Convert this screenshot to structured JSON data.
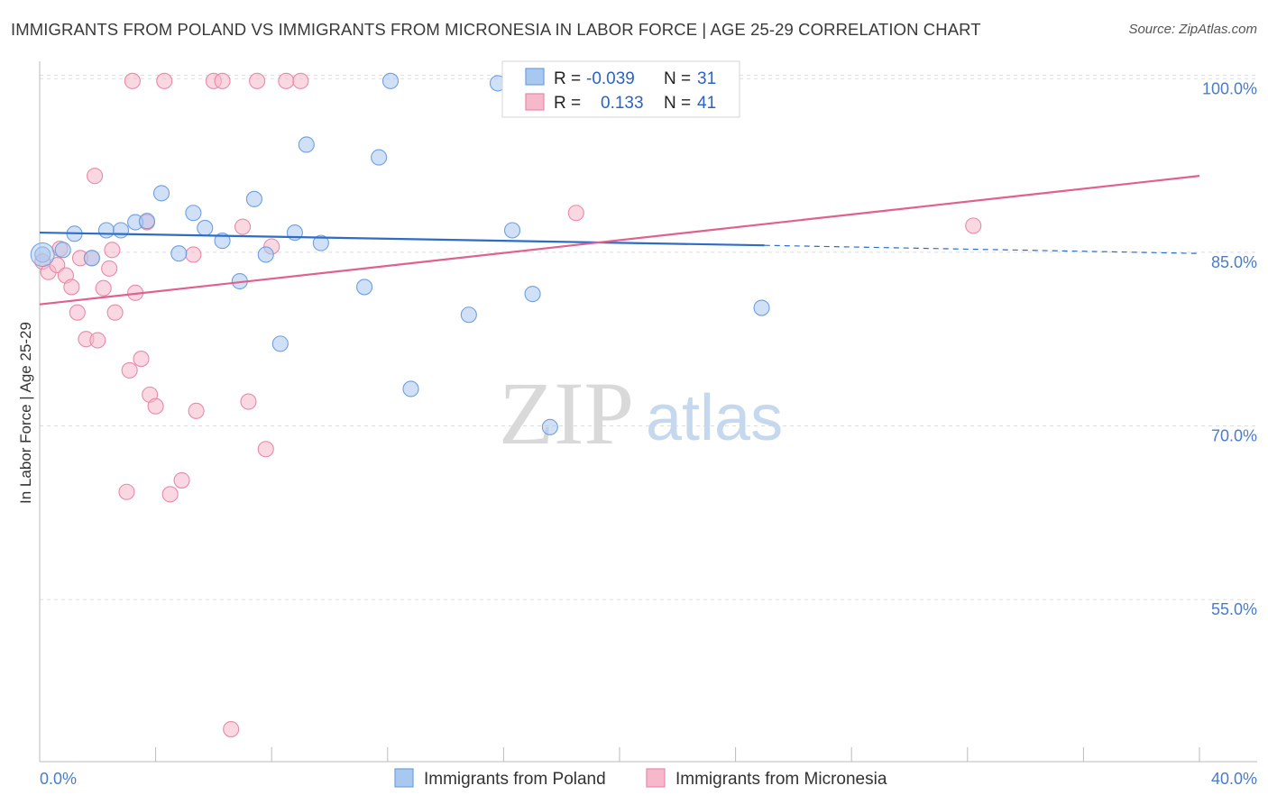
{
  "header": {
    "title": "IMMIGRANTS FROM POLAND VS IMMIGRANTS FROM MICRONESIA IN LABOR FORCE | AGE 25-29 CORRELATION CHART",
    "source": "Source: ZipAtlas.com"
  },
  "watermark": {
    "zip": "ZIP",
    "atlas": "atlas"
  },
  "legend": {
    "rows": [
      {
        "r_label": "R =",
        "r_value": "-0.039",
        "n_label": "N =",
        "n_value": "31",
        "color": "#a7c7ef"
      },
      {
        "r_label": "R =",
        "r_value": "0.133",
        "n_label": "N =",
        "n_value": "41",
        "color": "#f4b6c8"
      }
    ]
  },
  "bottom_legend": {
    "poland": "Immigrants from Poland",
    "micronesia": "Immigrants from Micronesia"
  },
  "colors": {
    "poland_fill": "#a9c8f0",
    "poland_stroke": "#6f9fdd",
    "poland_line": "#2d6cc9",
    "micronesia_fill": "#f6b8cb",
    "micronesia_stroke": "#e88aa8",
    "micronesia_line": "#e0608e",
    "tick_label": "#4a7cc9",
    "grid": "#dddddd"
  },
  "chart_data": {
    "type": "scatter",
    "title": "IMMIGRANTS FROM POLAND VS IMMIGRANTS FROM MICRONESIA IN LABOR FORCE | AGE 25-29 CORRELATION CHART",
    "xlabel": "",
    "ylabel": "In Labor Force | Age 25-29",
    "xlim": [
      0,
      40
    ],
    "ylim": [
      41,
      101.5
    ],
    "x_tick_labels": [
      "0.0%",
      "40.0%"
    ],
    "y_ticks": [
      55,
      70,
      85,
      100
    ],
    "y_tick_labels": [
      "55.0%",
      "70.0%",
      "85.0%",
      "100.0%"
    ],
    "grid": true,
    "legend_position": "top-center",
    "series": [
      {
        "name": "Immigrants from Poland",
        "r": -0.039,
        "n": 31,
        "points": [
          [
            0.1,
            84.8
          ],
          [
            0.8,
            85.2
          ],
          [
            1.2,
            86.6
          ],
          [
            1.8,
            84.5
          ],
          [
            2.3,
            86.9
          ],
          [
            2.8,
            86.9
          ],
          [
            3.3,
            87.6
          ],
          [
            3.7,
            87.7
          ],
          [
            4.2,
            90.1
          ],
          [
            4.8,
            84.9
          ],
          [
            5.3,
            88.4
          ],
          [
            5.7,
            87.1
          ],
          [
            6.3,
            86.0
          ],
          [
            6.9,
            82.5
          ],
          [
            7.4,
            89.6
          ],
          [
            7.8,
            84.8
          ],
          [
            8.3,
            77.1
          ],
          [
            8.8,
            86.7
          ],
          [
            9.2,
            94.3
          ],
          [
            9.7,
            85.8
          ],
          [
            11.2,
            82.0
          ],
          [
            11.7,
            93.2
          ],
          [
            12.1,
            99.8
          ],
          [
            12.8,
            73.2
          ],
          [
            14.8,
            79.6
          ],
          [
            15.8,
            99.6
          ],
          [
            16.3,
            86.9
          ],
          [
            17.0,
            81.4
          ],
          [
            17.2,
            99.6
          ],
          [
            17.6,
            69.9
          ],
          [
            24.9,
            80.2
          ]
        ],
        "trend": {
          "x_start": 0,
          "y_start": 86.7,
          "x_solid_end": 25,
          "y_solid_end": 85.6,
          "x_end": 40,
          "y_end": 84.9
        }
      },
      {
        "name": "Immigrants from Micronesia",
        "r": 0.133,
        "n": 41,
        "points": [
          [
            0.1,
            84.2
          ],
          [
            0.3,
            83.3
          ],
          [
            0.6,
            83.9
          ],
          [
            0.7,
            85.3
          ],
          [
            0.9,
            83.0
          ],
          [
            1.1,
            82.0
          ],
          [
            1.3,
            79.8
          ],
          [
            1.4,
            84.5
          ],
          [
            1.6,
            77.5
          ],
          [
            1.8,
            84.5
          ],
          [
            1.9,
            91.6
          ],
          [
            2.0,
            77.4
          ],
          [
            2.2,
            81.9
          ],
          [
            2.4,
            83.6
          ],
          [
            2.5,
            85.2
          ],
          [
            2.6,
            79.8
          ],
          [
            3.0,
            64.3
          ],
          [
            3.1,
            74.8
          ],
          [
            3.2,
            99.8
          ],
          [
            3.3,
            81.5
          ],
          [
            3.5,
            75.8
          ],
          [
            3.7,
            87.6
          ],
          [
            3.8,
            72.7
          ],
          [
            4.0,
            71.7
          ],
          [
            4.3,
            99.8
          ],
          [
            4.5,
            64.1
          ],
          [
            4.9,
            65.3
          ],
          [
            5.3,
            84.8
          ],
          [
            5.4,
            71.3
          ],
          [
            6.0,
            99.8
          ],
          [
            6.3,
            99.8
          ],
          [
            6.6,
            43.8
          ],
          [
            7.0,
            87.2
          ],
          [
            7.2,
            72.1
          ],
          [
            7.5,
            99.8
          ],
          [
            7.8,
            68.0
          ],
          [
            8.0,
            85.5
          ],
          [
            8.5,
            99.8
          ],
          [
            9.0,
            99.8
          ],
          [
            18.5,
            88.4
          ],
          [
            32.2,
            87.3
          ]
        ],
        "trend": {
          "x_start": 0,
          "y_start": 80.5,
          "x_end": 40,
          "y_end": 91.6
        }
      }
    ]
  }
}
